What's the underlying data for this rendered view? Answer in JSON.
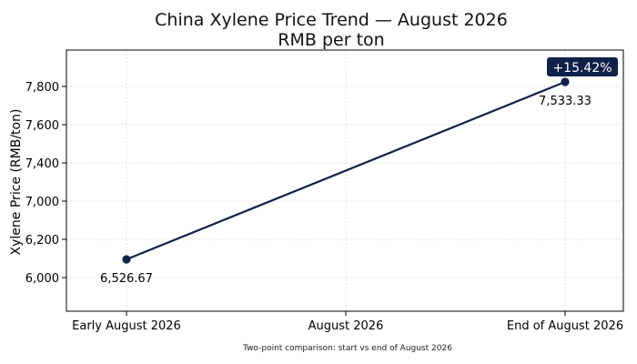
{
  "chart_data": {
    "type": "line",
    "title": "China Xylene Price Trend — August 2026",
    "subtitle": "RMB per ton",
    "ylabel": "Xylene Price (RMB/ton)",
    "xlabel": "",
    "categories": [
      "Early August 2026",
      "August 2026",
      "End of August 2026"
    ],
    "y_tick_labels": [
      "6,000",
      "6,200",
      "7,000",
      "7,400",
      "7,600",
      "7,800"
    ],
    "series": [
      {
        "points": [
          {
            "category": "Early August 2026",
            "value": 6526.67,
            "label": "6,526.67"
          },
          {
            "category": "End of August 2026",
            "value": 7533.33,
            "label": "7,533.33"
          }
        ]
      }
    ],
    "change_badge": "+15.42%",
    "caption": "Two-point comparison: start vs end of August 2026",
    "grid": true,
    "legend": "none",
    "colors": {
      "line": "#0f2148",
      "badge_bg": "#0f2148",
      "badge_text": "#ffffff",
      "grid": "#dddddd"
    }
  }
}
